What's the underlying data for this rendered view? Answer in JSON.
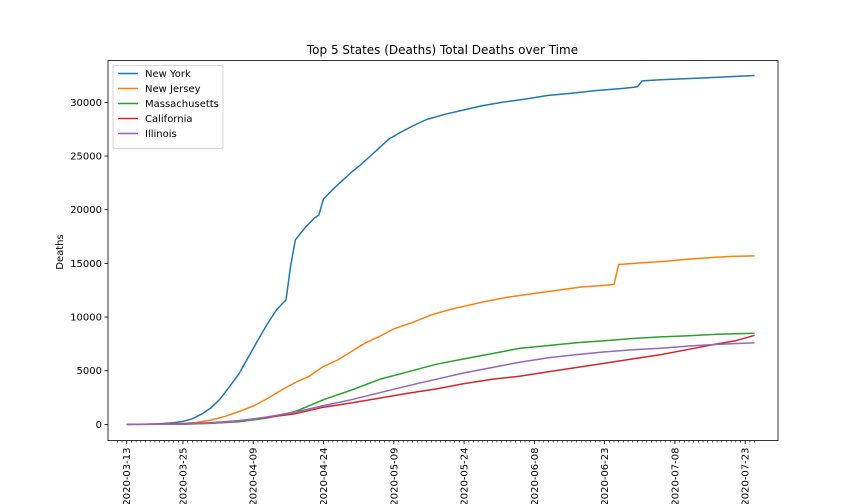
{
  "chart_data": {
    "type": "line",
    "title": "Top 5 States (Deaths) Total Deaths over Time",
    "xlabel": "",
    "ylabel": "Deaths",
    "ylim": [
      -1500,
      33900
    ],
    "yticks": [
      0,
      5000,
      10000,
      15000,
      20000,
      25000,
      30000
    ],
    "xticks": [
      "2020-03-13",
      "2020-03-25",
      "2020-04-09",
      "2020-04-24",
      "2020-05-09",
      "2020-05-24",
      "2020-06-08",
      "2020-06-23",
      "2020-07-08",
      "2020-07-23"
    ],
    "xlim": [
      "2020-03-09",
      "2020-07-30"
    ],
    "grid": false,
    "legend_position": "top-left",
    "series": [
      {
        "name": "New York",
        "color": "#1f77b4",
        "points": [
          [
            "2020-03-13",
            0
          ],
          [
            "2020-03-17",
            20
          ],
          [
            "2020-03-20",
            60
          ],
          [
            "2020-03-23",
            150
          ],
          [
            "2020-03-25",
            280
          ],
          [
            "2020-03-27",
            520
          ],
          [
            "2020-03-29",
            960
          ],
          [
            "2020-03-31",
            1550
          ],
          [
            "2020-04-02",
            2400
          ],
          [
            "2020-04-04",
            3550
          ],
          [
            "2020-04-06",
            4750
          ],
          [
            "2020-04-08",
            6300
          ],
          [
            "2020-04-10",
            7850
          ],
          [
            "2020-04-12",
            9350
          ],
          [
            "2020-04-14",
            10700
          ],
          [
            "2020-04-16",
            11600
          ],
          [
            "2020-04-17",
            14800
          ],
          [
            "2020-04-18",
            17200
          ],
          [
            "2020-04-20",
            18300
          ],
          [
            "2020-04-22",
            19200
          ],
          [
            "2020-04-23",
            19500
          ],
          [
            "2020-04-24",
            21000
          ],
          [
            "2020-04-26",
            21900
          ],
          [
            "2020-04-28",
            22700
          ],
          [
            "2020-04-30",
            23500
          ],
          [
            "2020-05-02",
            24200
          ],
          [
            "2020-05-04",
            25000
          ],
          [
            "2020-05-06",
            25800
          ],
          [
            "2020-05-08",
            26600
          ],
          [
            "2020-05-10",
            27100
          ],
          [
            "2020-05-13",
            27800
          ],
          [
            "2020-05-16",
            28400
          ],
          [
            "2020-05-20",
            28900
          ],
          [
            "2020-05-24",
            29300
          ],
          [
            "2020-05-28",
            29700
          ],
          [
            "2020-06-01",
            30000
          ],
          [
            "2020-06-06",
            30300
          ],
          [
            "2020-06-11",
            30650
          ],
          [
            "2020-06-16",
            30850
          ],
          [
            "2020-06-21",
            31100
          ],
          [
            "2020-06-27",
            31300
          ],
          [
            "2020-06-30",
            31450
          ],
          [
            "2020-07-01",
            32000
          ],
          [
            "2020-07-05",
            32100
          ],
          [
            "2020-07-10",
            32200
          ],
          [
            "2020-07-15",
            32300
          ],
          [
            "2020-07-20",
            32400
          ],
          [
            "2020-07-25",
            32500
          ]
        ]
      },
      {
        "name": "New Jersey",
        "color": "#ff7f0e",
        "points": [
          [
            "2020-03-13",
            0
          ],
          [
            "2020-03-20",
            20
          ],
          [
            "2020-03-25",
            80
          ],
          [
            "2020-03-28",
            190
          ],
          [
            "2020-03-31",
            400
          ],
          [
            "2020-04-03",
            750
          ],
          [
            "2020-04-06",
            1200
          ],
          [
            "2020-04-09",
            1700
          ],
          [
            "2020-04-12",
            2400
          ],
          [
            "2020-04-15",
            3200
          ],
          [
            "2020-04-18",
            3900
          ],
          [
            "2020-04-21",
            4500
          ],
          [
            "2020-04-24",
            5400
          ],
          [
            "2020-04-27",
            6000
          ],
          [
            "2020-04-30",
            6800
          ],
          [
            "2020-05-03",
            7600
          ],
          [
            "2020-05-06",
            8200
          ],
          [
            "2020-05-09",
            8900
          ],
          [
            "2020-05-13",
            9500
          ],
          [
            "2020-05-17",
            10200
          ],
          [
            "2020-05-21",
            10700
          ],
          [
            "2020-05-25",
            11100
          ],
          [
            "2020-05-29",
            11500
          ],
          [
            "2020-06-03",
            11900
          ],
          [
            "2020-06-08",
            12200
          ],
          [
            "2020-06-13",
            12500
          ],
          [
            "2020-06-18",
            12800
          ],
          [
            "2020-06-23",
            12950
          ],
          [
            "2020-06-25",
            13050
          ],
          [
            "2020-06-26",
            14900
          ],
          [
            "2020-07-01",
            15050
          ],
          [
            "2020-07-06",
            15200
          ],
          [
            "2020-07-11",
            15400
          ],
          [
            "2020-07-16",
            15550
          ],
          [
            "2020-07-20",
            15650
          ],
          [
            "2020-07-25",
            15700
          ]
        ]
      },
      {
        "name": "Massachusetts",
        "color": "#2ca02c",
        "points": [
          [
            "2020-03-13",
            0
          ],
          [
            "2020-03-25",
            20
          ],
          [
            "2020-03-31",
            90
          ],
          [
            "2020-04-06",
            250
          ],
          [
            "2020-04-12",
            600
          ],
          [
            "2020-04-18",
            1200
          ],
          [
            "2020-04-24",
            2300
          ],
          [
            "2020-04-30",
            3200
          ],
          [
            "2020-05-06",
            4200
          ],
          [
            "2020-05-12",
            4900
          ],
          [
            "2020-05-18",
            5600
          ],
          [
            "2020-05-24",
            6100
          ],
          [
            "2020-05-30",
            6600
          ],
          [
            "2020-06-05",
            7100
          ],
          [
            "2020-06-11",
            7350
          ],
          [
            "2020-06-17",
            7600
          ],
          [
            "2020-06-23",
            7800
          ],
          [
            "2020-06-29",
            8000
          ],
          [
            "2020-07-05",
            8150
          ],
          [
            "2020-07-11",
            8250
          ],
          [
            "2020-07-17",
            8400
          ],
          [
            "2020-07-25",
            8500
          ]
        ]
      },
      {
        "name": "California",
        "color": "#d62728",
        "points": [
          [
            "2020-03-13",
            0
          ],
          [
            "2020-03-25",
            60
          ],
          [
            "2020-03-31",
            160
          ],
          [
            "2020-04-06",
            350
          ],
          [
            "2020-04-12",
            650
          ],
          [
            "2020-04-18",
            1000
          ],
          [
            "2020-04-24",
            1600
          ],
          [
            "2020-04-30",
            2000
          ],
          [
            "2020-05-06",
            2450
          ],
          [
            "2020-05-12",
            2900
          ],
          [
            "2020-05-18",
            3300
          ],
          [
            "2020-05-24",
            3800
          ],
          [
            "2020-05-30",
            4200
          ],
          [
            "2020-06-05",
            4500
          ],
          [
            "2020-06-11",
            4900
          ],
          [
            "2020-06-17",
            5300
          ],
          [
            "2020-06-23",
            5700
          ],
          [
            "2020-06-29",
            6100
          ],
          [
            "2020-07-05",
            6500
          ],
          [
            "2020-07-11",
            7000
          ],
          [
            "2020-07-17",
            7500
          ],
          [
            "2020-07-21",
            7800
          ],
          [
            "2020-07-25",
            8300
          ]
        ]
      },
      {
        "name": "Illinois",
        "color": "#9467bd",
        "points": [
          [
            "2020-03-13",
            0
          ],
          [
            "2020-03-25",
            30
          ],
          [
            "2020-03-31",
            120
          ],
          [
            "2020-04-06",
            320
          ],
          [
            "2020-04-12",
            700
          ],
          [
            "2020-04-18",
            1150
          ],
          [
            "2020-04-24",
            1750
          ],
          [
            "2020-04-30",
            2300
          ],
          [
            "2020-05-06",
            2950
          ],
          [
            "2020-05-12",
            3600
          ],
          [
            "2020-05-18",
            4200
          ],
          [
            "2020-05-24",
            4800
          ],
          [
            "2020-05-30",
            5300
          ],
          [
            "2020-06-05",
            5800
          ],
          [
            "2020-06-11",
            6200
          ],
          [
            "2020-06-17",
            6500
          ],
          [
            "2020-06-23",
            6750
          ],
          [
            "2020-06-29",
            6950
          ],
          [
            "2020-07-05",
            7100
          ],
          [
            "2020-07-11",
            7300
          ],
          [
            "2020-07-17",
            7450
          ],
          [
            "2020-07-25",
            7600
          ]
        ]
      }
    ]
  }
}
